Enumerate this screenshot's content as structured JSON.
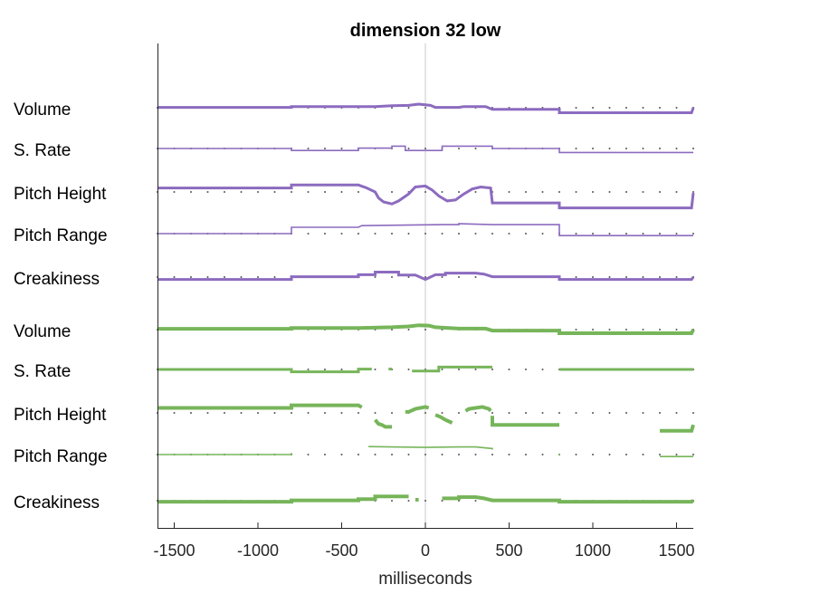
{
  "chart_data": {
    "type": "line",
    "title": "dimension 32 low",
    "xlabel": "milliseconds",
    "ylabel": "",
    "xlim": [
      -1600,
      1600
    ],
    "xticks": [
      -1500,
      -1000,
      -500,
      0,
      500,
      1000,
      1500
    ],
    "tick_labels": [
      "-1500",
      "-1000",
      "-500",
      "0",
      "500",
      "1000",
      "1500"
    ],
    "reference_line_x": 0,
    "dot_spacing_ms": 100,
    "colors": {
      "purple": "#8c6bbf",
      "green": "#77b55a",
      "zero_line": "#c8c8c8",
      "axis": "#262626"
    },
    "groups": [
      {
        "color": "purple",
        "series": [
          {
            "label": "Volume",
            "width": 3,
            "segments": [
              [
                [
                  -1600,
                  0.02
                ],
                [
                  -800,
                  0.02
                ],
                [
                  -800,
                  0.06
                ],
                [
                  -300,
                  0.06
                ],
                [
                  -200,
                  0.1
                ],
                [
                  -100,
                  0.12
                ],
                [
                  -40,
                  0.18
                ],
                [
                  30,
                  0.12
                ],
                [
                  60,
                  0.02
                ],
                [
                  200,
                  0.02
                ],
                [
                  230,
                  0.06
                ],
                [
                  360,
                  0.06
                ],
                [
                  400,
                  -0.08
                ],
                [
                  800,
                  -0.08
                ],
                [
                  800,
                  -0.25
                ],
                [
                  1590,
                  -0.25
                ],
                [
                  1600,
                  0.0
                ]
              ]
            ]
          },
          {
            "label": "S. Rate",
            "width": 1.6,
            "segments": [
              [
                [
                  -1600,
                  0
                ],
                [
                  -800,
                  0
                ],
                [
                  -800,
                  -0.1
                ],
                [
                  -400,
                  -0.1
                ],
                [
                  -400,
                  0.02
                ],
                [
                  -200,
                  0.02
                ],
                [
                  -200,
                  0.12
                ],
                [
                  -120,
                  0.12
                ],
                [
                  -120,
                  -0.1
                ],
                [
                  100,
                  -0.1
                ],
                [
                  100,
                  0.12
                ],
                [
                  400,
                  0.12
                ],
                [
                  400,
                  0
                ],
                [
                  800,
                  0
                ],
                [
                  800,
                  -0.2
                ],
                [
                  1600,
                  -0.2
                ]
              ]
            ]
          },
          {
            "label": "Pitch Height",
            "width": 3,
            "segments": [
              [
                [
                  -1600,
                  0.2
                ],
                [
                  -800,
                  0.2
                ],
                [
                  -800,
                  0.35
                ],
                [
                  -400,
                  0.35
                ],
                [
                  -350,
                  0.2
                ],
                [
                  -300,
                  0
                ],
                [
                  -280,
                  -0.3
                ],
                [
                  -250,
                  -0.5
                ],
                [
                  -200,
                  -0.6
                ],
                [
                  -160,
                  -0.45
                ],
                [
                  -100,
                  -0.1
                ],
                [
                  -60,
                  0.25
                ],
                [
                  0,
                  0.3
                ],
                [
                  40,
                  0.1
                ],
                [
                  80,
                  -0.2
                ],
                [
                  130,
                  -0.45
                ],
                [
                  180,
                  -0.4
                ],
                [
                  230,
                  -0.1
                ],
                [
                  280,
                  0.15
                ],
                [
                  330,
                  0.25
                ],
                [
                  390,
                  0.2
                ],
                [
                  400,
                  -0.55
                ],
                [
                  800,
                  -0.55
                ],
                [
                  800,
                  -0.8
                ],
                [
                  1590,
                  -0.8
                ],
                [
                  1600,
                  -0.05
                ]
              ]
            ]
          },
          {
            "label": "Pitch Range",
            "width": 1.6,
            "segments": [
              [
                [
                  -1600,
                  0
                ],
                [
                  -800,
                  0
                ],
                [
                  -800,
                  0.32
                ],
                [
                  -400,
                  0.32
                ],
                [
                  -380,
                  0.4
                ],
                [
                  100,
                  0.45
                ],
                [
                  200,
                  0.45
                ],
                [
                  200,
                  0.5
                ],
                [
                  400,
                  0.45
                ],
                [
                  800,
                  0.45
                ],
                [
                  800,
                  -0.1
                ],
                [
                  1600,
                  -0.1
                ]
              ]
            ]
          },
          {
            "label": "Creakiness",
            "width": 3,
            "segments": [
              [
                [
                  -1600,
                  -0.12
                ],
                [
                  -800,
                  -0.12
                ],
                [
                  -800,
                  0.02
                ],
                [
                  -400,
                  0.02
                ],
                [
                  -400,
                  0.12
                ],
                [
                  -300,
                  0.12
                ],
                [
                  -300,
                  0.25
                ],
                [
                  -160,
                  0.25
                ],
                [
                  -160,
                  0.1
                ],
                [
                  -60,
                  0.1
                ],
                [
                  0,
                  -0.12
                ],
                [
                  60,
                  0.12
                ],
                [
                  120,
                  0.12
                ],
                [
                  120,
                  0.2
                ],
                [
                  200,
                  0.2
                ],
                [
                  300,
                  0.2
                ],
                [
                  350,
                  0.15
                ],
                [
                  400,
                  0.02
                ],
                [
                  800,
                  0.02
                ],
                [
                  800,
                  -0.12
                ],
                [
                  1590,
                  -0.12
                ],
                [
                  1600,
                  0
                ]
              ]
            ]
          }
        ]
      },
      {
        "color": "green",
        "series": [
          {
            "label": "Volume",
            "width": 4,
            "segments": [
              [
                [
                  -1600,
                  0.04
                ],
                [
                  -800,
                  0.04
                ],
                [
                  -800,
                  0.08
                ],
                [
                  -400,
                  0.08
                ],
                [
                  -200,
                  0.12
                ],
                [
                  -100,
                  0.16
                ],
                [
                  -40,
                  0.22
                ],
                [
                  20,
                  0.2
                ],
                [
                  60,
                  0.12
                ],
                [
                  200,
                  0.05
                ],
                [
                  360,
                  0.05
                ],
                [
                  400,
                  -0.05
                ],
                [
                  800,
                  -0.05
                ],
                [
                  800,
                  -0.18
                ],
                [
                  1590,
                  -0.18
                ],
                [
                  1600,
                  0.0
                ]
              ]
            ]
          },
          {
            "label": "S. Rate",
            "width": 3,
            "segments": [
              [
                [
                  -1600,
                  0
                ],
                [
                  -800,
                  0
                ],
                [
                  -800,
                  -0.12
                ],
                [
                  -400,
                  -0.12
                ],
                [
                  -400,
                  0.02
                ],
                [
                  -320,
                  0.02
                ]
              ],
              [
                [
                  -220,
                  0.02
                ],
                [
                  -200,
                  0.02
                ]
              ],
              [
                [
                  -80,
                  -0.08
                ],
                [
                  80,
                  -0.08
                ],
                [
                  80,
                  0.12
                ],
                [
                  400,
                  0.12
                ]
              ],
              [
                [
                  800,
                  0
                ],
                [
                  1600,
                  0
                ]
              ]
            ]
          },
          {
            "label": "Pitch Height",
            "width": 4,
            "segments": [
              [
                [
                  -1600,
                  0.25
                ],
                [
                  -800,
                  0.25
                ],
                [
                  -800,
                  0.38
                ],
                [
                  -400,
                  0.38
                ],
                [
                  -380,
                  0.28
                ]
              ],
              [
                [
                  -300,
                  -0.35
                ],
                [
                  -280,
                  -0.55
                ],
                [
                  -260,
                  -0.6
                ],
                [
                  -240,
                  -0.7
                ],
                [
                  -200,
                  -0.7
                ]
              ],
              [
                [
                  -120,
                  0.05
                ],
                [
                  -100,
                  0.05
                ],
                [
                  -60,
                  0.2
                ],
                [
                  0,
                  0.3
                ],
                [
                  20,
                  0.25
                ]
              ],
              [
                [
                  60,
                  -0.1
                ],
                [
                  90,
                  -0.2
                ],
                [
                  120,
                  -0.35
                ],
                [
                  160,
                  -0.5
                ]
              ],
              [
                [
                  240,
                  0.1
                ],
                [
                  260,
                  0.2
                ],
                [
                  300,
                  0.25
                ],
                [
                  340,
                  0.3
                ],
                [
                  380,
                  0.2
                ],
                [
                  390,
                  0.1
                ]
              ],
              [
                [
                  400,
                  -0.15
                ],
                [
                  400,
                  -0.6
                ],
                [
                  800,
                  -0.6
                ]
              ],
              [
                [
                  1400,
                  -0.9
                ],
                [
                  1590,
                  -0.9
                ],
                [
                  1600,
                  -0.6
                ]
              ]
            ]
          },
          {
            "label": "Pitch Range",
            "width": 1.6,
            "segments": [
              [
                [
                  -1600,
                  0
                ],
                [
                  -800,
                  0
                ],
                [
                  -800,
                  0.08
                ]
              ],
              [
                [
                  -340,
                  0.4
                ],
                [
                  -200,
                  0.38
                ],
                [
                  0,
                  0.36
                ],
                [
                  200,
                  0.38
                ],
                [
                  300,
                  0.38
                ],
                [
                  400,
                  0.3
                ],
                [
                  400,
                  0.25
                ]
              ],
              [
                [
                  800,
                  0.05
                ],
                [
                  800,
                  -0.05
                ]
              ],
              [
                [
                  1400,
                  -0.1
                ],
                [
                  1600,
                  -0.1
                ]
              ]
            ]
          },
          {
            "label": "Creakiness",
            "width": 4,
            "segments": [
              [
                [
                  -1600,
                  -0.05
                ],
                [
                  -800,
                  -0.05
                ],
                [
                  -800,
                  0.02
                ],
                [
                  -400,
                  0.02
                ],
                [
                  -400,
                  0.08
                ],
                [
                  -300,
                  0.08
                ],
                [
                  -300,
                  0.22
                ],
                [
                  -100,
                  0.22
                ]
              ],
              [
                [
                  -60,
                  0.05
                ],
                [
                  -40,
                  0.05
                ]
              ],
              [
                [
                  100,
                  0.12
                ],
                [
                  200,
                  0.12
                ],
                [
                  200,
                  0.18
                ],
                [
                  300,
                  0.18
                ],
                [
                  350,
                  0.12
                ],
                [
                  400,
                  0.02
                ],
                [
                  800,
                  0.02
                ],
                [
                  800,
                  -0.05
                ],
                [
                  1590,
                  -0.05
                ],
                [
                  1600,
                  0.02
                ]
              ]
            ]
          }
        ]
      }
    ]
  }
}
